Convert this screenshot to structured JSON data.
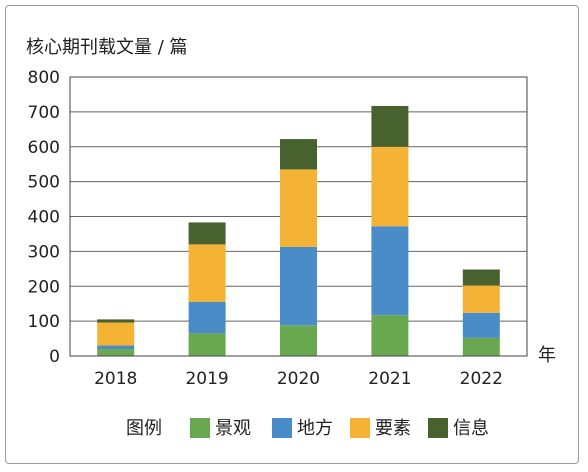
{
  "chart_data": {
    "type": "bar",
    "stacked": true,
    "ylabel": "核心期刊载文量 / 篇",
    "xlabel": "年",
    "categories": [
      "2018",
      "2019",
      "2020",
      "2021",
      "2022"
    ],
    "ylim": [
      0,
      800
    ],
    "yticks": [
      0,
      100,
      200,
      300,
      400,
      500,
      600,
      700,
      800
    ],
    "grid": true,
    "legend_title": "图例",
    "legend_position": "bottom",
    "series": [
      {
        "name": "景观",
        "color": "#6aa84f",
        "values": [
          20,
          65,
          88,
          117,
          52
        ]
      },
      {
        "name": "地方",
        "color": "#4a8cc8",
        "values": [
          10,
          90,
          225,
          255,
          72
        ]
      },
      {
        "name": "要素",
        "color": "#f5b335",
        "values": [
          66,
          165,
          222,
          228,
          78
        ]
      },
      {
        "name": "信息",
        "color": "#47612f",
        "values": [
          9,
          63,
          87,
          117,
          46
        ]
      }
    ]
  }
}
